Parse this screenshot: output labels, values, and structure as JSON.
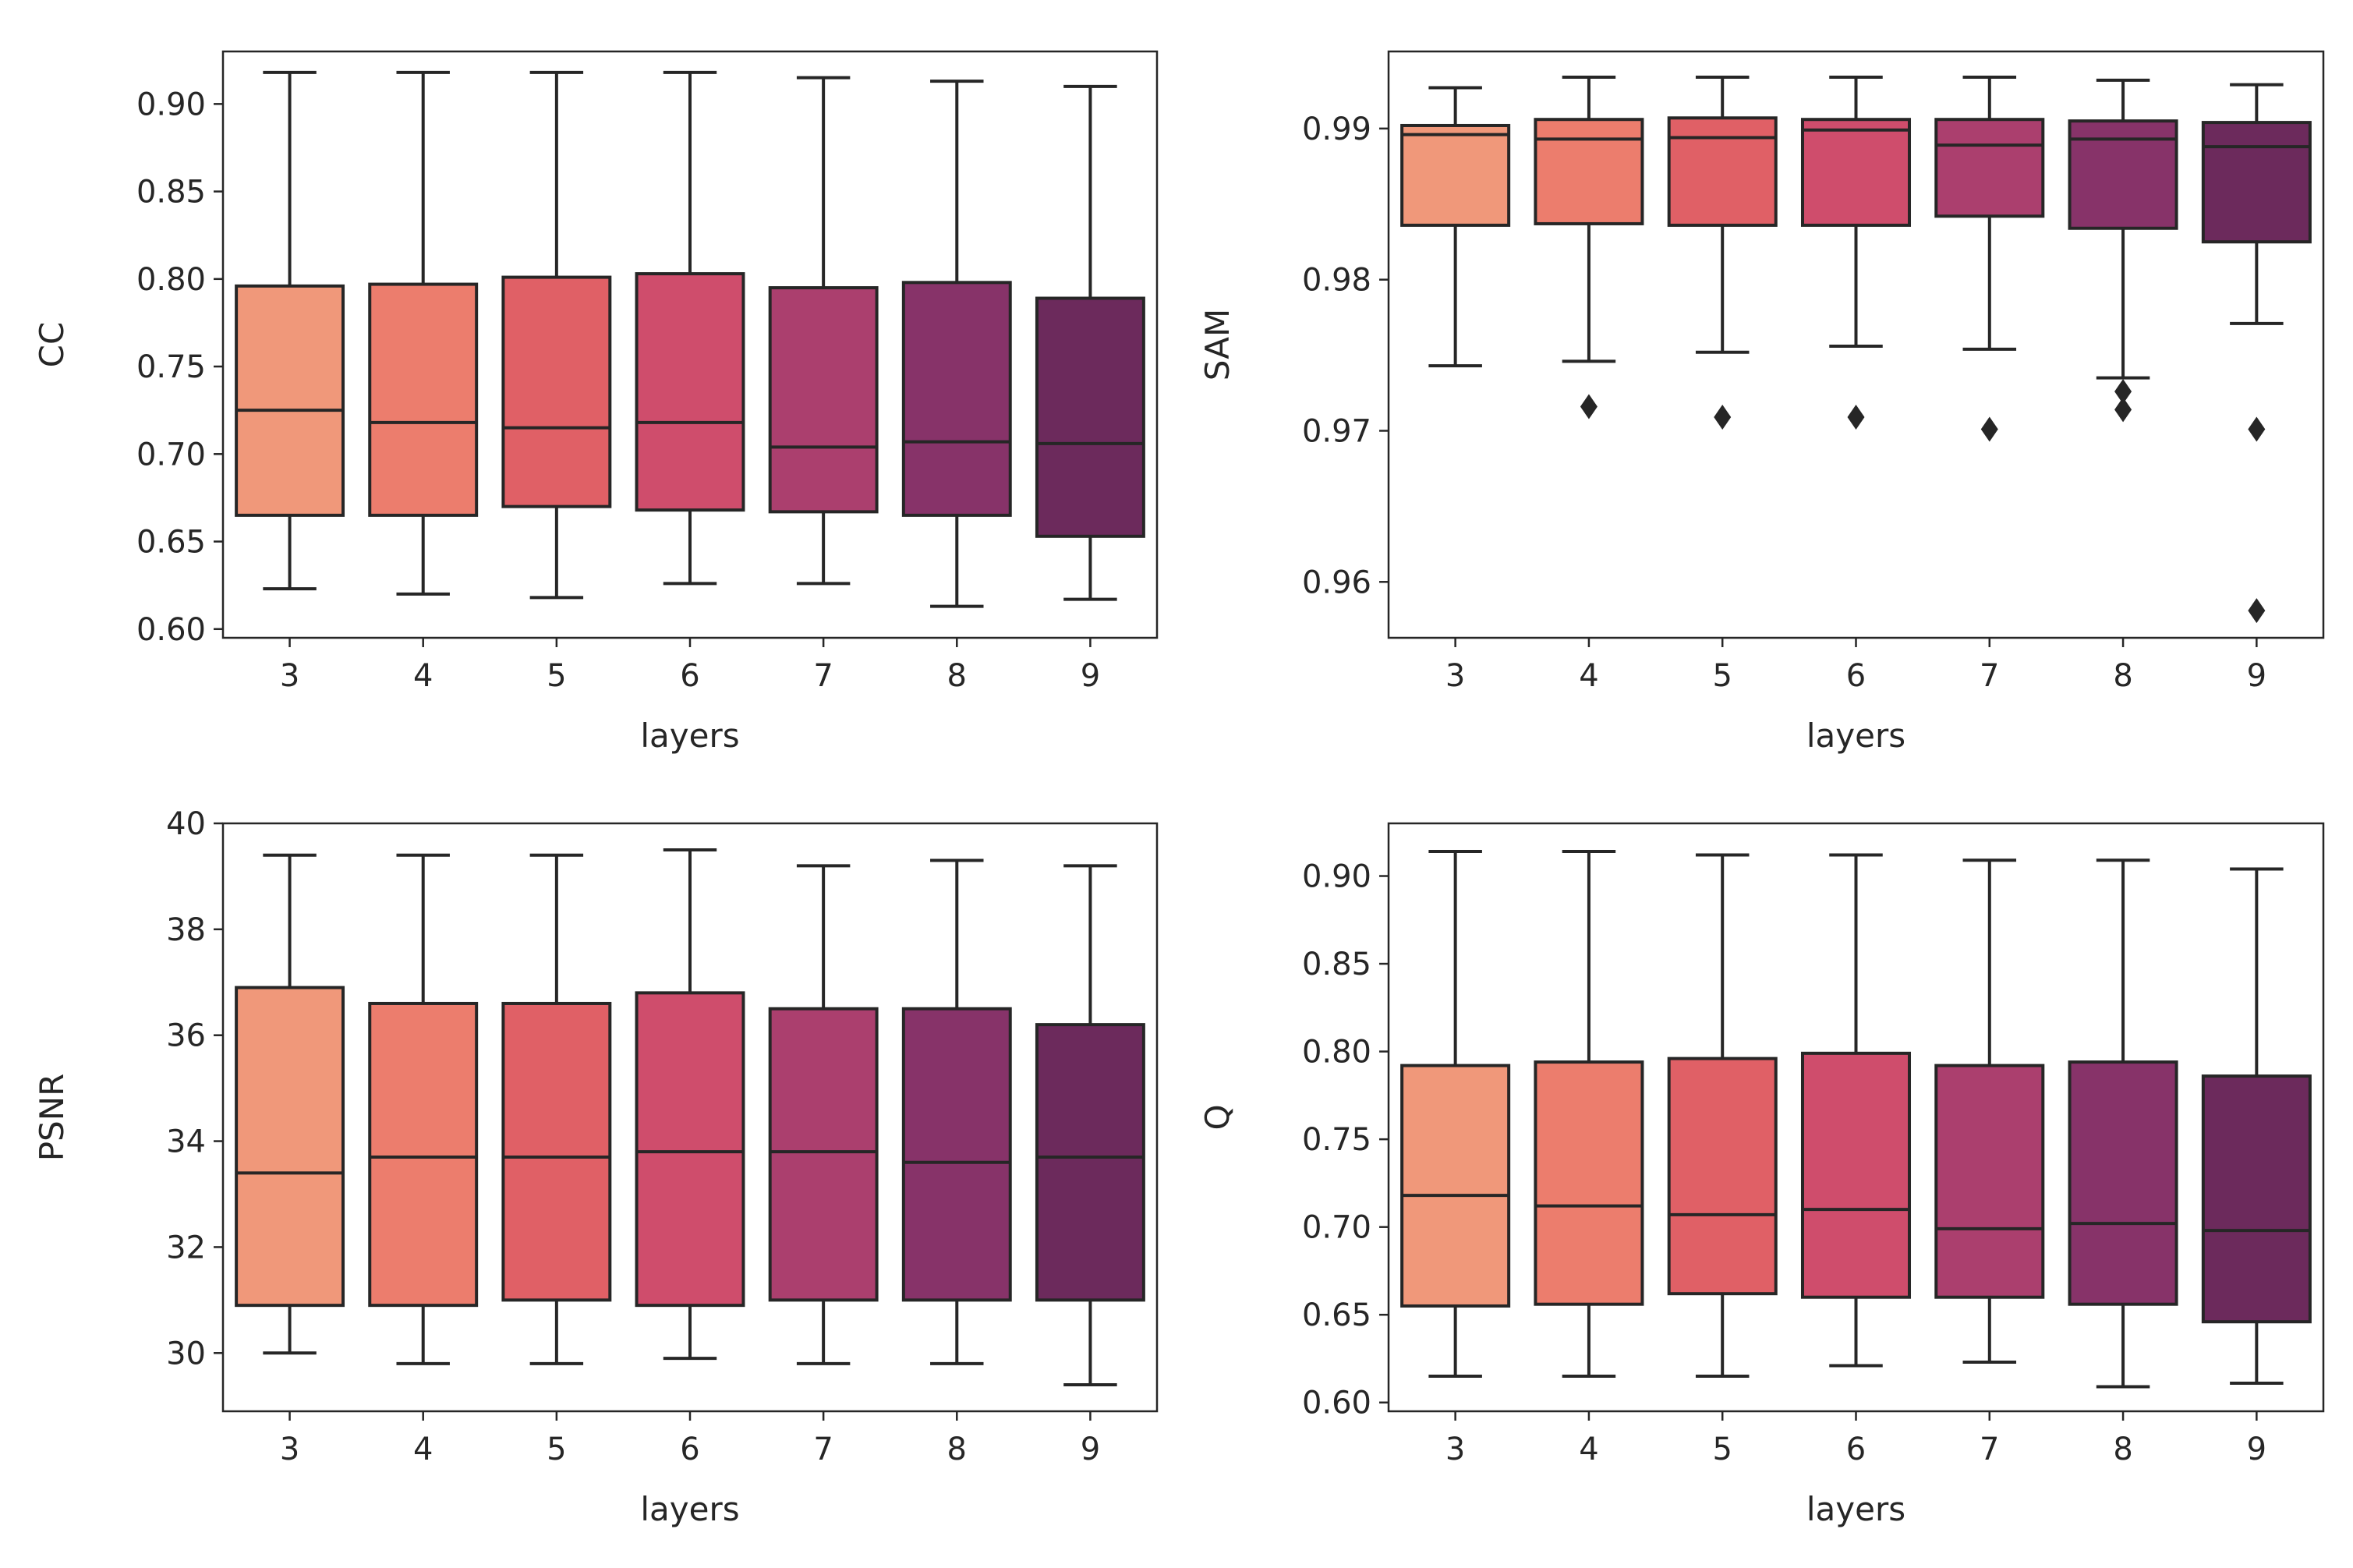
{
  "palette": [
    "#f0987a",
    "#ec7d6d",
    "#e06066",
    "#cf4d6c",
    "#ab3f6e",
    "#873369",
    "#6c2a5c"
  ],
  "chart_data": [
    {
      "type": "box",
      "position": "top-left",
      "xlabel": "layers",
      "ylabel": "CC",
      "ylim": [
        0.595,
        0.93
      ],
      "yticks": [
        0.6,
        0.65,
        0.7,
        0.75,
        0.8,
        0.85,
        0.9
      ],
      "ytick_labels": [
        "0.60",
        "0.65",
        "0.70",
        "0.75",
        "0.80",
        "0.85",
        "0.90"
      ],
      "categories": [
        "3",
        "4",
        "5",
        "6",
        "7",
        "8",
        "9"
      ],
      "boxes": [
        {
          "category": "3",
          "whisker_low": 0.623,
          "q1": 0.665,
          "median": 0.725,
          "q3": 0.796,
          "whisker_high": 0.918,
          "outliers": []
        },
        {
          "category": "4",
          "whisker_low": 0.62,
          "q1": 0.665,
          "median": 0.718,
          "q3": 0.797,
          "whisker_high": 0.918,
          "outliers": []
        },
        {
          "category": "5",
          "whisker_low": 0.618,
          "q1": 0.67,
          "median": 0.715,
          "q3": 0.801,
          "whisker_high": 0.918,
          "outliers": []
        },
        {
          "category": "6",
          "whisker_low": 0.626,
          "q1": 0.668,
          "median": 0.718,
          "q3": 0.803,
          "whisker_high": 0.918,
          "outliers": []
        },
        {
          "category": "7",
          "whisker_low": 0.626,
          "q1": 0.667,
          "median": 0.704,
          "q3": 0.795,
          "whisker_high": 0.915,
          "outliers": []
        },
        {
          "category": "8",
          "whisker_low": 0.613,
          "q1": 0.665,
          "median": 0.707,
          "q3": 0.798,
          "whisker_high": 0.913,
          "outliers": []
        },
        {
          "category": "9",
          "whisker_low": 0.617,
          "q1": 0.653,
          "median": 0.706,
          "q3": 0.789,
          "whisker_high": 0.91,
          "outliers": []
        }
      ]
    },
    {
      "type": "box",
      "position": "top-right",
      "xlabel": "layers",
      "ylabel": "SAM",
      "ylim": [
        0.9563,
        0.9951
      ],
      "yticks": [
        0.96,
        0.97,
        0.98,
        0.99
      ],
      "ytick_labels": [
        "0.96",
        "0.97",
        "0.98",
        "0.99"
      ],
      "categories": [
        "3",
        "4",
        "5",
        "6",
        "7",
        "8",
        "9"
      ],
      "boxes": [
        {
          "category": "3",
          "whisker_low": 0.9743,
          "q1": 0.9836,
          "median": 0.9896,
          "q3": 0.9902,
          "whisker_high": 0.9927,
          "outliers": []
        },
        {
          "category": "4",
          "whisker_low": 0.9746,
          "q1": 0.9837,
          "median": 0.9893,
          "q3": 0.9906,
          "whisker_high": 0.9934,
          "outliers": [
            0.9716
          ]
        },
        {
          "category": "5",
          "whisker_low": 0.9752,
          "q1": 0.9836,
          "median": 0.9894,
          "q3": 0.9907,
          "whisker_high": 0.9934,
          "outliers": [
            0.9709
          ]
        },
        {
          "category": "6",
          "whisker_low": 0.9756,
          "q1": 0.9836,
          "median": 0.9899,
          "q3": 0.9906,
          "whisker_high": 0.9934,
          "outliers": [
            0.9709
          ]
        },
        {
          "category": "7",
          "whisker_low": 0.9754,
          "q1": 0.9842,
          "median": 0.9889,
          "q3": 0.9906,
          "whisker_high": 0.9934,
          "outliers": [
            0.9701
          ]
        },
        {
          "category": "8",
          "whisker_low": 0.9735,
          "q1": 0.9834,
          "median": 0.9893,
          "q3": 0.9905,
          "whisker_high": 0.9932,
          "outliers": [
            0.9726,
            0.9714
          ]
        },
        {
          "category": "9",
          "whisker_low": 0.9771,
          "q1": 0.9825,
          "median": 0.9888,
          "q3": 0.9904,
          "whisker_high": 0.9929,
          "outliers": [
            0.9701,
            0.9581
          ]
        }
      ]
    },
    {
      "type": "box",
      "position": "bottom-left",
      "xlabel": "layers",
      "ylabel": "PSNR",
      "ylim": [
        28.9,
        40.0
      ],
      "yticks": [
        30,
        32,
        34,
        36,
        38,
        40
      ],
      "ytick_labels": [
        "30",
        "32",
        "34",
        "36",
        "38",
        "40"
      ],
      "categories": [
        "3",
        "4",
        "5",
        "6",
        "7",
        "8",
        "9"
      ],
      "boxes": [
        {
          "category": "3",
          "whisker_low": 30.0,
          "q1": 30.9,
          "median": 33.4,
          "q3": 36.9,
          "whisker_high": 39.4,
          "outliers": []
        },
        {
          "category": "4",
          "whisker_low": 29.8,
          "q1": 30.9,
          "median": 33.7,
          "q3": 36.6,
          "whisker_high": 39.4,
          "outliers": []
        },
        {
          "category": "5",
          "whisker_low": 29.8,
          "q1": 31.0,
          "median": 33.7,
          "q3": 36.6,
          "whisker_high": 39.4,
          "outliers": []
        },
        {
          "category": "6",
          "whisker_low": 29.9,
          "q1": 30.9,
          "median": 33.8,
          "q3": 36.8,
          "whisker_high": 39.5,
          "outliers": []
        },
        {
          "category": "7",
          "whisker_low": 29.8,
          "q1": 31.0,
          "median": 33.8,
          "q3": 36.5,
          "whisker_high": 39.2,
          "outliers": []
        },
        {
          "category": "8",
          "whisker_low": 29.8,
          "q1": 31.0,
          "median": 33.6,
          "q3": 36.5,
          "whisker_high": 39.3,
          "outliers": []
        },
        {
          "category": "9",
          "whisker_low": 29.4,
          "q1": 31.0,
          "median": 33.7,
          "q3": 36.2,
          "whisker_high": 39.2,
          "outliers": []
        }
      ]
    },
    {
      "type": "box",
      "position": "bottom-right",
      "xlabel": "layers",
      "ylabel": "Q",
      "ylim": [
        0.595,
        0.93
      ],
      "yticks": [
        0.6,
        0.65,
        0.7,
        0.75,
        0.8,
        0.85,
        0.9
      ],
      "ytick_labels": [
        "0.60",
        "0.65",
        "0.70",
        "0.75",
        "0.80",
        "0.85",
        "0.90"
      ],
      "categories": [
        "3",
        "4",
        "5",
        "6",
        "7",
        "8",
        "9"
      ],
      "boxes": [
        {
          "category": "3",
          "whisker_low": 0.615,
          "q1": 0.655,
          "median": 0.718,
          "q3": 0.792,
          "whisker_high": 0.914,
          "outliers": []
        },
        {
          "category": "4",
          "whisker_low": 0.615,
          "q1": 0.656,
          "median": 0.712,
          "q3": 0.794,
          "whisker_high": 0.914,
          "outliers": []
        },
        {
          "category": "5",
          "whisker_low": 0.615,
          "q1": 0.662,
          "median": 0.707,
          "q3": 0.796,
          "whisker_high": 0.912,
          "outliers": []
        },
        {
          "category": "6",
          "whisker_low": 0.621,
          "q1": 0.66,
          "median": 0.71,
          "q3": 0.799,
          "whisker_high": 0.912,
          "outliers": []
        },
        {
          "category": "7",
          "whisker_low": 0.623,
          "q1": 0.66,
          "median": 0.699,
          "q3": 0.792,
          "whisker_high": 0.909,
          "outliers": []
        },
        {
          "category": "8",
          "whisker_low": 0.609,
          "q1": 0.656,
          "median": 0.702,
          "q3": 0.794,
          "whisker_high": 0.909,
          "outliers": []
        },
        {
          "category": "9",
          "whisker_low": 0.611,
          "q1": 0.646,
          "median": 0.698,
          "q3": 0.786,
          "whisker_high": 0.904,
          "outliers": []
        }
      ]
    }
  ]
}
